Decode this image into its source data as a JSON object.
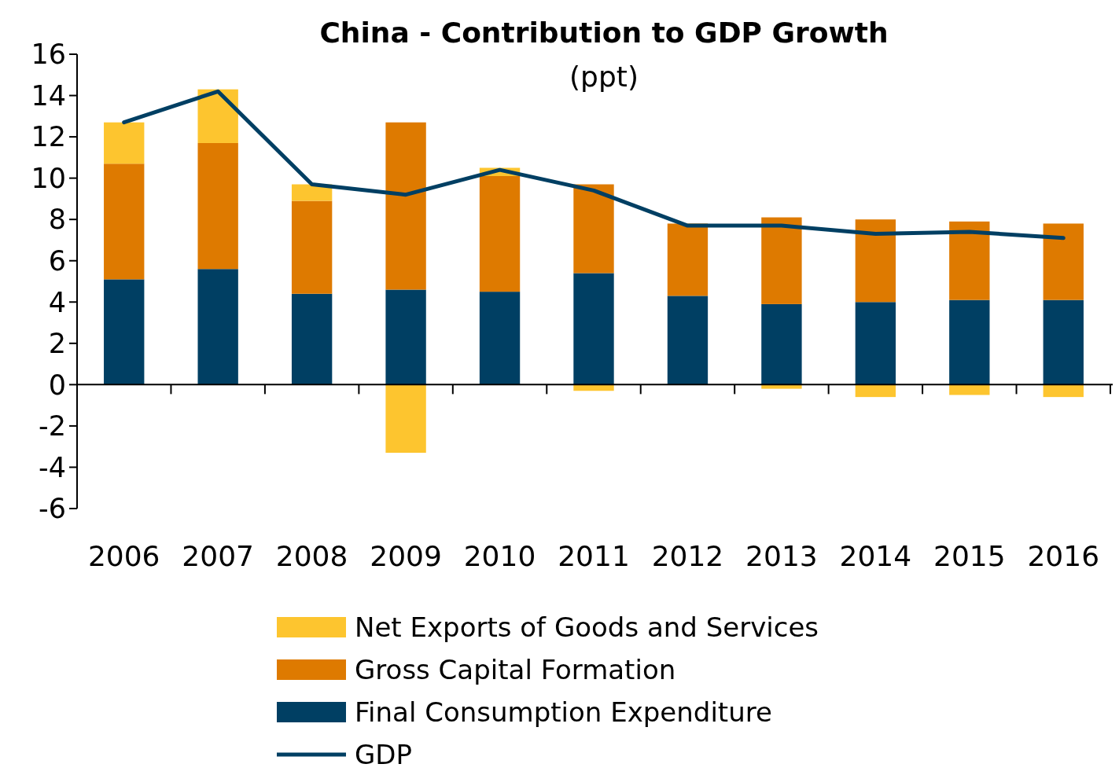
{
  "chart_data": {
    "type": "bar",
    "title": "China - Contribution to GDP Growth",
    "subtitle": "(ppt)",
    "stacked": true,
    "categories": [
      "2006",
      "2007",
      "2008",
      "2009",
      "2010",
      "2011",
      "2012",
      "2013",
      "2014",
      "2015",
      "2016"
    ],
    "series": [
      {
        "name": "Final Consumption Expenditure",
        "color": "#003f63",
        "values": [
          5.1,
          5.6,
          4.4,
          4.6,
          4.5,
          5.4,
          4.3,
          3.9,
          4.0,
          4.1,
          4.1
        ]
      },
      {
        "name": "Gross Capital Formation",
        "color": "#de7a00",
        "values": [
          5.6,
          6.1,
          4.5,
          8.1,
          5.6,
          4.3,
          3.5,
          4.2,
          4.0,
          3.8,
          3.7
        ]
      },
      {
        "name": "Net Exports of Goods and Services",
        "color": "#fdc52f",
        "values": [
          2.0,
          2.6,
          0.8,
          -3.3,
          0.4,
          -0.3,
          0.0,
          -0.2,
          -0.6,
          -0.5,
          -0.6
        ]
      },
      {
        "name": "GDP",
        "type": "line",
        "color": "#003f63",
        "values": [
          12.7,
          14.2,
          9.7,
          9.2,
          10.4,
          9.4,
          7.7,
          7.7,
          7.3,
          7.4,
          7.1
        ]
      }
    ],
    "ylim": [
      -6,
      16
    ],
    "yticks": [
      -6,
      -4,
      -2,
      0,
      2,
      4,
      6,
      8,
      10,
      12,
      14,
      16
    ],
    "legend": "bottom",
    "marker": "none",
    "line_style": "solid"
  }
}
